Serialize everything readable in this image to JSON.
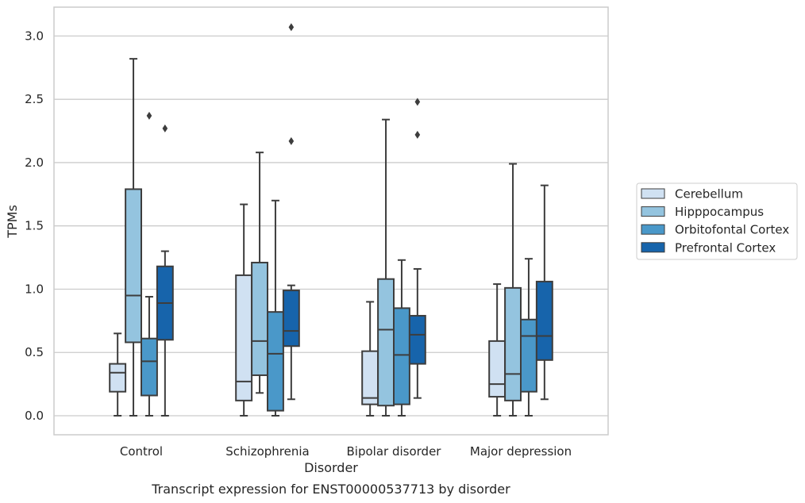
{
  "chart_data": {
    "type": "boxplot",
    "xlabel": "Disorder",
    "ylabel": "TPMs",
    "caption": "Transcript expression for ENST00000537713 by disorder",
    "ylim": [
      -0.15,
      3.23
    ],
    "yticks": [
      "0.0",
      "0.5",
      "1.0",
      "1.5",
      "2.0",
      "2.5",
      "3.0"
    ],
    "grid": "horizontal",
    "legend_position": "right",
    "categories": [
      "Control",
      "Schizophrenia",
      "Bipolar disorder",
      "Major depression"
    ],
    "series": [
      {
        "name": "Cerebellum",
        "color": "#d0e1f2",
        "boxes": [
          {
            "whislo": 0.0,
            "q1": 0.19,
            "med": 0.34,
            "q3": 0.41,
            "whishi": 0.65,
            "fliers": []
          },
          {
            "whislo": 0.0,
            "q1": 0.12,
            "med": 0.27,
            "q3": 1.11,
            "whishi": 1.67,
            "fliers": []
          },
          {
            "whislo": 0.0,
            "q1": 0.09,
            "med": 0.14,
            "q3": 0.51,
            "whishi": 0.9,
            "fliers": []
          },
          {
            "whislo": 0.0,
            "q1": 0.15,
            "med": 0.25,
            "q3": 0.59,
            "whishi": 1.04,
            "fliers": []
          }
        ]
      },
      {
        "name": "Hipppocampus",
        "color": "#94c4df",
        "boxes": [
          {
            "whislo": 0.0,
            "q1": 0.58,
            "med": 0.95,
            "q3": 1.79,
            "whishi": 2.82,
            "fliers": []
          },
          {
            "whislo": 0.18,
            "q1": 0.32,
            "med": 0.59,
            "q3": 1.21,
            "whishi": 2.08,
            "fliers": []
          },
          {
            "whislo": 0.0,
            "q1": 0.08,
            "med": 0.68,
            "q3": 1.08,
            "whishi": 2.34,
            "fliers": []
          },
          {
            "whislo": 0.0,
            "q1": 0.12,
            "med": 0.33,
            "q3": 1.01,
            "whishi": 1.99,
            "fliers": []
          }
        ]
      },
      {
        "name": "Orbitofontal Cortex",
        "color": "#4a98c9",
        "boxes": [
          {
            "whislo": 0.0,
            "q1": 0.16,
            "med": 0.43,
            "q3": 0.61,
            "whishi": 0.94,
            "fliers": [
              2.37
            ]
          },
          {
            "whislo": 0.0,
            "q1": 0.04,
            "med": 0.49,
            "q3": 0.82,
            "whishi": 1.7,
            "fliers": []
          },
          {
            "whislo": 0.0,
            "q1": 0.09,
            "med": 0.48,
            "q3": 0.85,
            "whishi": 1.23,
            "fliers": []
          },
          {
            "whislo": 0.0,
            "q1": 0.19,
            "med": 0.63,
            "q3": 0.76,
            "whishi": 1.24,
            "fliers": []
          }
        ]
      },
      {
        "name": "Prefrontal Cortex",
        "color": "#1764ab",
        "boxes": [
          {
            "whislo": 0.0,
            "q1": 0.6,
            "med": 0.89,
            "q3": 1.18,
            "whishi": 1.3,
            "fliers": [
              2.27
            ]
          },
          {
            "whislo": 0.13,
            "q1": 0.55,
            "med": 0.67,
            "q3": 0.99,
            "whishi": 1.03,
            "fliers": [
              2.17,
              3.07
            ]
          },
          {
            "whislo": 0.14,
            "q1": 0.41,
            "med": 0.64,
            "q3": 0.79,
            "whishi": 1.16,
            "fliers": [
              2.22,
              2.48
            ]
          },
          {
            "whislo": 0.13,
            "q1": 0.44,
            "med": 0.63,
            "q3": 1.06,
            "whishi": 1.82,
            "fliers": []
          }
        ]
      }
    ]
  }
}
